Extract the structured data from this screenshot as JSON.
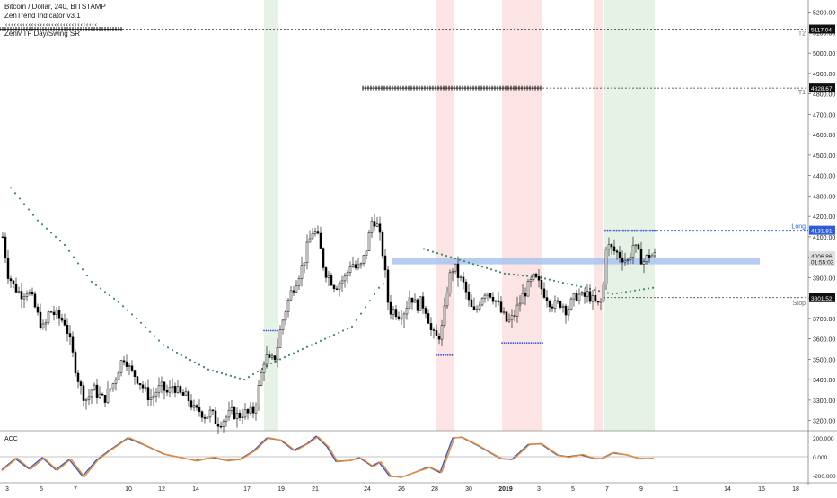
{
  "legend": {
    "title": "Bitcoin / Dollar, 240, BITSTAMP",
    "indicator1": "ZenTrend Indicator v3.1",
    "indicator2": "ZenMTF Day/Swing SR"
  },
  "acc_panel": {
    "label": "ACC",
    "ticks": [
      "200.000",
      "0.000",
      "-200.000"
    ]
  },
  "price_labels": {
    "t2_value": "5117.04",
    "t1_value": "4828.67",
    "long_value": "4131.81",
    "last_price": "4006.86",
    "countdown": "01:55:03",
    "stop_value": "3801.52",
    "t2_tag": "T2",
    "t1_tag": "T1",
    "long_tag": "Long",
    "stop_tag": "Stop"
  },
  "colors": {
    "up": "#ffffff",
    "down": "#000000",
    "green_zone": "#e6f2e6",
    "red_zone": "#fde4e4",
    "sr_band": "#a8c4ee",
    "dots_blue": "#2e5be0",
    "trail_green": "#3e8e5e",
    "acc_blue": "#2b5cd6",
    "acc_orange": "#f08a24"
  },
  "chart_data": {
    "type": "candlestick",
    "title": "Bitcoin / Dollar, 240, BITSTAMP",
    "y_ticks": [
      5200,
      5100,
      5000,
      4900,
      4800,
      4700,
      4600,
      4500,
      4400,
      4300,
      4200,
      4100,
      4000,
      3900,
      3800,
      3700,
      3600,
      3500,
      3400,
      3300,
      3200
    ],
    "ylim": [
      3150,
      5260
    ],
    "x_ticks": [
      "3",
      "5",
      "7",
      "10",
      "12",
      "14",
      "17",
      "19",
      "21",
      "24",
      "26",
      "28",
      "30",
      "2019",
      "3",
      "5",
      "7",
      "9",
      "11",
      "14",
      "16",
      "18"
    ],
    "levels": {
      "T2": 5117.04,
      "T1": 4828.67,
      "Long": 4131.81,
      "Stop": 3801.52,
      "Last": 4006.86,
      "SR_zone": [
        3965,
        3995
      ]
    },
    "close_path": [
      [
        0,
        4100
      ],
      [
        6,
        3920
      ],
      [
        12,
        3860
      ],
      [
        20,
        3820
      ],
      [
        28,
        3840
      ],
      [
        34,
        3780
      ],
      [
        40,
        3700
      ],
      [
        46,
        3640
      ],
      [
        52,
        3740
      ],
      [
        58,
        3720
      ],
      [
        64,
        3700
      ],
      [
        70,
        3680
      ],
      [
        76,
        3560
      ],
      [
        82,
        3440
      ],
      [
        88,
        3340
      ],
      [
        94,
        3300
      ],
      [
        100,
        3360
      ],
      [
        106,
        3330
      ],
      [
        112,
        3300
      ],
      [
        118,
        3340
      ],
      [
        124,
        3390
      ],
      [
        130,
        3470
      ],
      [
        136,
        3520
      ],
      [
        142,
        3440
      ],
      [
        148,
        3420
      ],
      [
        154,
        3380
      ],
      [
        160,
        3330
      ],
      [
        166,
        3310
      ],
      [
        172,
        3350
      ],
      [
        178,
        3360
      ],
      [
        184,
        3330
      ],
      [
        190,
        3380
      ],
      [
        196,
        3330
      ],
      [
        202,
        3320
      ],
      [
        208,
        3300
      ],
      [
        214,
        3240
      ],
      [
        220,
        3250
      ],
      [
        226,
        3220
      ],
      [
        232,
        3240
      ],
      [
        238,
        3190
      ],
      [
        244,
        3200
      ],
      [
        250,
        3220
      ],
      [
        256,
        3240
      ],
      [
        262,
        3220
      ],
      [
        268,
        3240
      ],
      [
        274,
        3230
      ],
      [
        280,
        3250
      ],
      [
        286,
        3380
      ],
      [
        292,
        3520
      ],
      [
        298,
        3480
      ],
      [
        304,
        3520
      ],
      [
        310,
        3660
      ],
      [
        316,
        3760
      ],
      [
        322,
        3840
      ],
      [
        328,
        3900
      ],
      [
        334,
        3960
      ],
      [
        340,
        4060
      ],
      [
        346,
        4140
      ],
      [
        352,
        4080
      ],
      [
        358,
        3940
      ],
      [
        364,
        3900
      ],
      [
        370,
        3860
      ],
      [
        376,
        3880
      ],
      [
        382,
        3900
      ],
      [
        388,
        3980
      ],
      [
        394,
        3940
      ],
      [
        400,
        3960
      ],
      [
        406,
        4060
      ],
      [
        412,
        4200
      ],
      [
        418,
        4140
      ],
      [
        424,
        4000
      ],
      [
        430,
        3740
      ],
      [
        436,
        3740
      ],
      [
        442,
        3720
      ],
      [
        448,
        3740
      ],
      [
        454,
        3820
      ],
      [
        460,
        3760
      ],
      [
        466,
        3780
      ],
      [
        472,
        3740
      ],
      [
        478,
        3620
      ],
      [
        484,
        3600
      ],
      [
        490,
        3660
      ],
      [
        496,
        3880
      ],
      [
        502,
        3960
      ],
      [
        508,
        3900
      ],
      [
        514,
        3860
      ],
      [
        520,
        3760
      ],
      [
        526,
        3720
      ],
      [
        532,
        3800
      ],
      [
        538,
        3840
      ],
      [
        544,
        3820
      ],
      [
        550,
        3780
      ],
      [
        556,
        3720
      ],
      [
        562,
        3680
      ],
      [
        568,
        3700
      ],
      [
        574,
        3760
      ],
      [
        580,
        3820
      ],
      [
        586,
        3860
      ],
      [
        592,
        3900
      ],
      [
        598,
        3860
      ],
      [
        604,
        3820
      ],
      [
        610,
        3780
      ],
      [
        616,
        3760
      ],
      [
        622,
        3780
      ],
      [
        628,
        3740
      ],
      [
        634,
        3780
      ],
      [
        640,
        3820
      ],
      [
        646,
        3800
      ],
      [
        652,
        3820
      ],
      [
        658,
        3780
      ],
      [
        664,
        3760
      ],
      [
        668,
        3800
      ],
      [
        672,
        4060
      ],
      [
        678,
        4040
      ],
      [
        684,
        4020
      ],
      [
        690,
        4000
      ],
      [
        696,
        3980
      ],
      [
        702,
        4060
      ],
      [
        708,
        4010
      ],
      [
        714,
        3980
      ],
      [
        720,
        4010
      ],
      [
        726,
        4006
      ]
    ],
    "trail_stop_path": [
      [
        10,
        4340
      ],
      [
        40,
        4180
      ],
      [
        70,
        4060
      ],
      [
        100,
        3880
      ],
      [
        130,
        3780
      ],
      [
        150,
        3700
      ],
      [
        180,
        3570
      ],
      [
        200,
        3520
      ],
      [
        230,
        3450
      ],
      [
        270,
        3400
      ],
      [
        300,
        3480
      ],
      [
        330,
        3540
      ],
      [
        360,
        3600
      ],
      [
        390,
        3660
      ],
      [
        420,
        3850
      ],
      [
        470,
        4040
      ],
      [
        500,
        4000
      ],
      [
        560,
        3920
      ],
      [
        600,
        3900
      ],
      [
        640,
        3860
      ],
      [
        680,
        3820
      ],
      [
        725,
        3850
      ]
    ],
    "zones": [
      {
        "type": "long",
        "x_start": 292,
        "x_end": 308
      },
      {
        "type": "short",
        "x_start": 484,
        "x_end": 503
      },
      {
        "type": "short",
        "x_start": 557,
        "x_end": 602
      },
      {
        "type": "short",
        "x_start": 659,
        "x_end": 669
      },
      {
        "type": "long",
        "x_start": 671,
        "x_end": 727
      }
    ],
    "dotted_levels_blue": [
      {
        "y": 3640,
        "x_start": 292,
        "x_end": 308
      },
      {
        "y": 3520,
        "x_start": 484,
        "x_end": 503
      },
      {
        "y": 3580,
        "x_start": 557,
        "x_end": 602
      },
      {
        "y": 4131.81,
        "x_start": 672,
        "x_end": 727
      }
    ],
    "acc": {
      "ylim": [
        -260,
        260
      ],
      "series": [
        {
          "color": "blue",
          "values": [
            [
              0,
              -140
            ],
            [
              15,
              -20
            ],
            [
              30,
              -130
            ],
            [
              45,
              -10
            ],
            [
              60,
              -140
            ],
            [
              75,
              -30
            ],
            [
              90,
              -210
            ],
            [
              105,
              -40
            ],
            [
              120,
              70
            ],
            [
              140,
              200
            ],
            [
              160,
              120
            ],
            [
              180,
              30
            ],
            [
              200,
              -10
            ],
            [
              215,
              -40
            ],
            [
              235,
              -10
            ],
            [
              250,
              -40
            ],
            [
              265,
              -30
            ],
            [
              280,
              60
            ],
            [
              295,
              200
            ],
            [
              310,
              180
            ],
            [
              325,
              70
            ],
            [
              340,
              140
            ],
            [
              350,
              220
            ],
            [
              362,
              110
            ],
            [
              372,
              -50
            ],
            [
              388,
              -40
            ],
            [
              398,
              -10
            ],
            [
              412,
              -100
            ],
            [
              420,
              -60
            ],
            [
              432,
              -210
            ],
            [
              445,
              -220
            ],
            [
              462,
              -160
            ],
            [
              475,
              -110
            ],
            [
              488,
              -170
            ],
            [
              502,
              200
            ],
            [
              512,
              210
            ],
            [
              530,
              120
            ],
            [
              548,
              20
            ],
            [
              556,
              -20
            ],
            [
              568,
              -30
            ],
            [
              586,
              130
            ],
            [
              600,
              140
            ],
            [
              618,
              20
            ],
            [
              630,
              0
            ],
            [
              645,
              20
            ],
            [
              660,
              -20
            ],
            [
              668,
              -20
            ],
            [
              680,
              40
            ],
            [
              696,
              20
            ],
            [
              710,
              -20
            ],
            [
              726,
              -20
            ]
          ]
        },
        {
          "color": "orange",
          "values": [
            [
              0,
              -150
            ],
            [
              17,
              -15
            ],
            [
              32,
              -135
            ],
            [
              47,
              -15
            ],
            [
              62,
              -145
            ],
            [
              77,
              -25
            ],
            [
              92,
              -215
            ],
            [
              107,
              -35
            ],
            [
              122,
              75
            ],
            [
              142,
              205
            ],
            [
              162,
              115
            ],
            [
              182,
              25
            ],
            [
              202,
              -15
            ],
            [
              217,
              -45
            ],
            [
              237,
              -5
            ],
            [
              252,
              -45
            ],
            [
              267,
              -25
            ],
            [
              282,
              65
            ],
            [
              297,
              205
            ],
            [
              312,
              175
            ],
            [
              327,
              65
            ],
            [
              342,
              145
            ],
            [
              352,
              215
            ],
            [
              364,
              105
            ],
            [
              374,
              -55
            ],
            [
              390,
              -35
            ],
            [
              400,
              -15
            ],
            [
              414,
              -105
            ],
            [
              422,
              -55
            ],
            [
              434,
              -215
            ],
            [
              447,
              -215
            ],
            [
              464,
              -155
            ],
            [
              477,
              -115
            ],
            [
              490,
              -165
            ],
            [
              504,
              205
            ],
            [
              514,
              205
            ],
            [
              532,
              115
            ],
            [
              550,
              15
            ],
            [
              558,
              -25
            ],
            [
              570,
              -25
            ],
            [
              588,
              135
            ],
            [
              602,
              135
            ],
            [
              620,
              15
            ],
            [
              632,
              -5
            ],
            [
              647,
              25
            ],
            [
              662,
              -25
            ],
            [
              670,
              -15
            ],
            [
              682,
              45
            ],
            [
              698,
              15
            ],
            [
              712,
              -25
            ],
            [
              726,
              -15
            ]
          ]
        }
      ],
      "ticks": [
        200,
        0,
        -200
      ]
    }
  }
}
